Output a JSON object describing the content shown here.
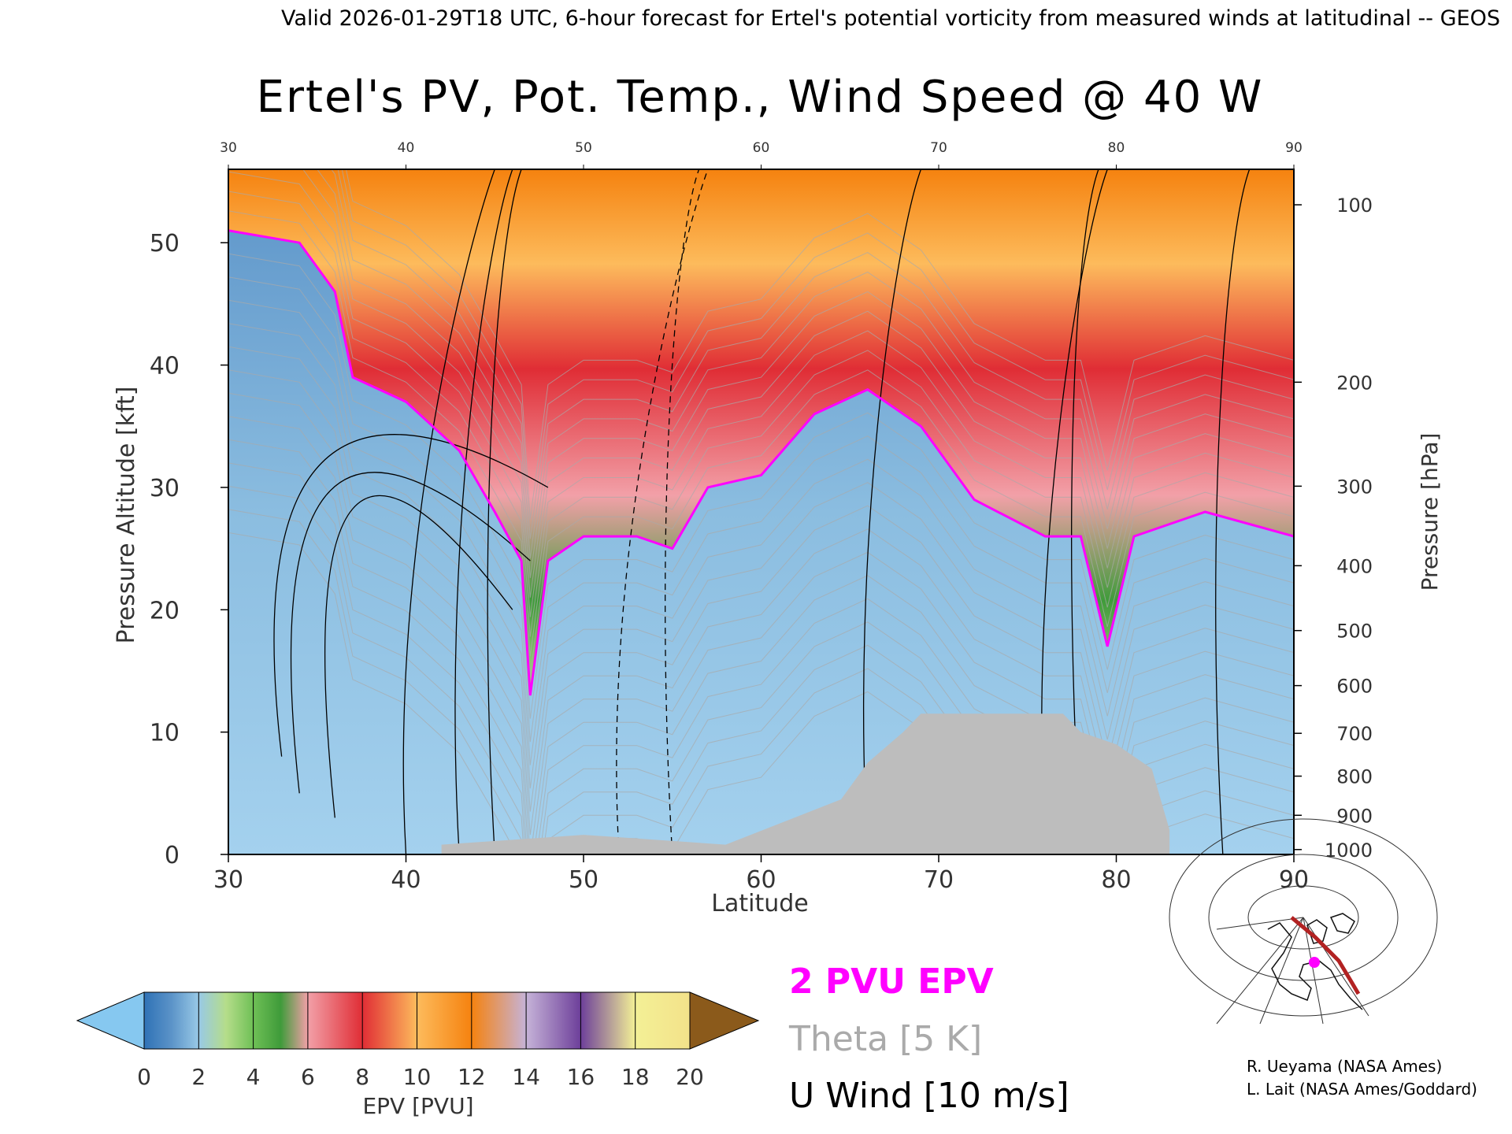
{
  "header": {
    "valid_line": "Valid 2026-01-29T18 UTC, 6-hour forecast for Ertel's potential vorticity from measured winds at latitudinal -- GEOS"
  },
  "chart_data": {
    "type": "heatmap",
    "title": "Ertel's PV, Pot. Temp., Wind Speed @ 40 W",
    "xlabel": "Latitude",
    "ylabel_left": "Pressure Altitude [kft]",
    "ylabel_right": "Pressure [hPa]",
    "xlim": [
      30,
      90
    ],
    "ylim": [
      0,
      56
    ],
    "x_ticks": [
      "30",
      "40",
      "50",
      "60",
      "70",
      "80",
      "90"
    ],
    "top_x_ticks": [
      "30",
      "40",
      "50",
      "60",
      "70",
      "80",
      "90"
    ],
    "y_ticks": [
      "0",
      "10",
      "20",
      "30",
      "40",
      "50"
    ],
    "pressure_ticks": [
      {
        "label": "100",
        "alt": 53.1
      },
      {
        "label": "200",
        "alt": 38.6
      },
      {
        "label": "300",
        "alt": 30.1
      },
      {
        "label": "400",
        "alt": 23.6
      },
      {
        "label": "500",
        "alt": 18.3
      },
      {
        "label": "600",
        "alt": 13.8
      },
      {
        "label": "700",
        "alt": 9.9
      },
      {
        "label": "800",
        "alt": 6.4
      },
      {
        "label": "900",
        "alt": 3.2
      },
      {
        "label": "1000",
        "alt": 0.4
      }
    ],
    "tropopause_2pvu_kft": [
      {
        "lat": 30,
        "alt": 51
      },
      {
        "lat": 34,
        "alt": 50
      },
      {
        "lat": 36,
        "alt": 46
      },
      {
        "lat": 37,
        "alt": 39
      },
      {
        "lat": 40,
        "alt": 37
      },
      {
        "lat": 43,
        "alt": 33
      },
      {
        "lat": 45,
        "alt": 28
      },
      {
        "lat": 46.5,
        "alt": 24
      },
      {
        "lat": 47,
        "alt": 13
      },
      {
        "lat": 48,
        "alt": 24
      },
      {
        "lat": 50,
        "alt": 26
      },
      {
        "lat": 53,
        "alt": 26
      },
      {
        "lat": 55,
        "alt": 25
      },
      {
        "lat": 57,
        "alt": 30
      },
      {
        "lat": 60,
        "alt": 31
      },
      {
        "lat": 63,
        "alt": 36
      },
      {
        "lat": 66,
        "alt": 38
      },
      {
        "lat": 69,
        "alt": 35
      },
      {
        "lat": 72,
        "alt": 29
      },
      {
        "lat": 76,
        "alt": 26
      },
      {
        "lat": 78,
        "alt": 26
      },
      {
        "lat": 79.5,
        "alt": 17
      },
      {
        "lat": 81,
        "alt": 26
      },
      {
        "lat": 85,
        "alt": 28
      },
      {
        "lat": 90,
        "alt": 26
      }
    ],
    "topography_kft": [
      {
        "lat": 42,
        "alt": 0.8
      },
      {
        "lat": 50,
        "alt": 1.6
      },
      {
        "lat": 58,
        "alt": 0.8
      },
      {
        "lat": 64.5,
        "alt": 4.5
      },
      {
        "lat": 66,
        "alt": 7.5
      },
      {
        "lat": 68,
        "alt": 10
      },
      {
        "lat": 69,
        "alt": 11.5
      },
      {
        "lat": 77,
        "alt": 11.5
      },
      {
        "lat": 78,
        "alt": 10
      },
      {
        "lat": 80,
        "alt": 9
      },
      {
        "lat": 82,
        "alt": 7
      },
      {
        "lat": 83,
        "alt": 2
      },
      {
        "lat": 83,
        "alt": 0
      }
    ],
    "colorbar": {
      "label": "EPV [PVU]",
      "tick_labels": [
        "0",
        "2",
        "4",
        "6",
        "8",
        "10",
        "12",
        "14",
        "16",
        "18",
        "20"
      ],
      "colors": [
        "#5b93c8",
        "#98c9e6",
        "#b5dd8a",
        "#3f9b3a",
        "#f2a0a8",
        "#e02d35",
        "#fdbb5c",
        "#f5820f",
        "#c6b3d8",
        "#6d3f9a",
        "#f3f096"
      ],
      "under_color": "#86c8f0",
      "over_color": "#8b5a1b"
    }
  },
  "legend": {
    "pvu": "2 PVU EPV",
    "theta": "Theta [5 K]",
    "wind": "U Wind [10 m/s]",
    "pvu_color": "#ff00ff",
    "theta_color": "#aaaaaa",
    "wind_color": "#000000"
  },
  "credits": {
    "line1": "R. Ueyama (NASA Ames)",
    "line2": "L. Lait (NASA Ames/Goddard)"
  },
  "inset_map": {
    "track_color": "#b22222",
    "marker_color": "#ff00ff"
  }
}
